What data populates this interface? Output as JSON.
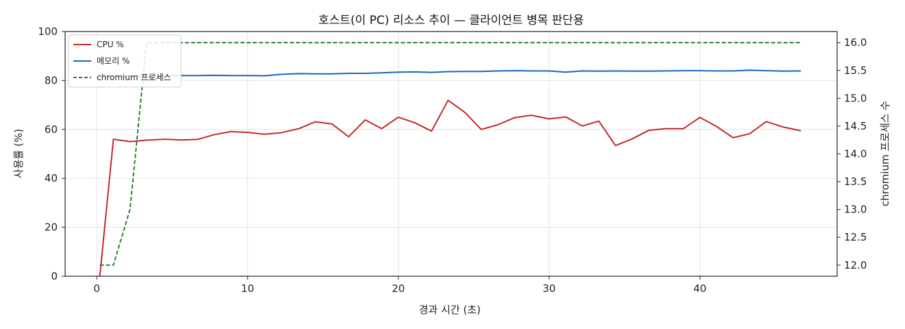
{
  "chart_data": {
    "type": "line",
    "title": "호스트(이 PC) 리소스 추이 — 클라이언트 병목 판단용",
    "xlabel": "경과 시간 (초)",
    "ylabel": "사용률 (%)",
    "y2label": "chromium 프로세스 수",
    "xlim": [
      -2.1,
      49.1
    ],
    "ylim": [
      0,
      100
    ],
    "y2lim": [
      11.8,
      16.2
    ],
    "x_ticks": [
      "0",
      "10",
      "20",
      "30",
      "40"
    ],
    "x_tick_values": [
      0,
      10,
      20,
      30,
      40
    ],
    "y_ticks": [
      "0",
      "20",
      "40",
      "60",
      "80",
      "100"
    ],
    "y_tick_values": [
      0,
      20,
      40,
      60,
      80,
      100
    ],
    "y2_ticks": [
      "12.0",
      "12.5",
      "13.0",
      "13.5",
      "14.0",
      "14.5",
      "15.0",
      "15.5",
      "16.0"
    ],
    "y2_tick_values": [
      12.0,
      12.5,
      13.0,
      13.5,
      14.0,
      14.5,
      15.0,
      15.5,
      16.0
    ],
    "grid": true,
    "legend_position": "top-left",
    "series": [
      {
        "name": "CPU %",
        "axis": "left",
        "color": "#c62828",
        "style": "solid",
        "x": [
          0.2,
          1.1,
          2.2,
          3.3,
          4.5,
          5.6,
          6.7,
          7.8,
          8.9,
          10.0,
          11.1,
          12.2,
          13.4,
          14.5,
          15.6,
          16.7,
          17.8,
          18.9,
          20.0,
          21.1,
          22.2,
          23.3,
          24.4,
          25.5,
          26.6,
          27.7,
          28.8,
          30.0,
          31.1,
          32.2,
          33.3,
          34.4,
          35.5,
          36.6,
          37.7,
          38.9,
          40.0,
          41.1,
          42.2,
          43.3,
          44.4,
          45.5,
          46.7
        ],
        "values": [
          0,
          56,
          55,
          55.6,
          56,
          55.7,
          55.9,
          57.9,
          59.1,
          58.8,
          58,
          58.6,
          60.3,
          63.1,
          62.2,
          57,
          63.9,
          60.3,
          65,
          62.7,
          59.3,
          71.9,
          67,
          60,
          61.9,
          64.8,
          65.8,
          64.3,
          65.1,
          61.4,
          63.4,
          53.4,
          56.1,
          59.6,
          60.3,
          60.3,
          64.9,
          61.2,
          56.6,
          58.2,
          63.2,
          61,
          59.4
        ]
      },
      {
        "name": "메모리 %",
        "axis": "left",
        "color": "#1565c0",
        "style": "solid",
        "x": [
          0.2,
          1.1,
          2.2,
          3.3,
          4.5,
          5.6,
          6.7,
          7.8,
          8.9,
          10.0,
          11.1,
          12.2,
          13.4,
          14.5,
          15.6,
          16.7,
          17.8,
          18.9,
          20.0,
          21.1,
          22.2,
          23.3,
          24.4,
          25.5,
          26.6,
          27.7,
          28.8,
          30.0,
          31.1,
          32.2,
          33.3,
          34.4,
          35.5,
          36.6,
          37.7,
          38.9,
          40.0,
          41.1,
          42.2,
          43.3,
          44.4,
          45.5,
          46.7
        ],
        "values": [
          81.5,
          81.6,
          81.7,
          81.8,
          82,
          82,
          82,
          82.1,
          82,
          82,
          81.9,
          82.5,
          82.8,
          82.7,
          82.7,
          82.9,
          82.9,
          83.1,
          83.4,
          83.5,
          83.3,
          83.6,
          83.7,
          83.7,
          83.9,
          84,
          83.9,
          83.9,
          83.4,
          83.9,
          83.8,
          83.9,
          83.8,
          83.8,
          83.9,
          84,
          84,
          83.9,
          83.9,
          84.2,
          84,
          83.8,
          83.9
        ]
      },
      {
        "name": "chromium 프로세스",
        "axis": "right",
        "color": "#2e7d32",
        "style": "dashed",
        "x": [
          0.2,
          1.1,
          2.2,
          3.3,
          4.5,
          5.6,
          6.7,
          7.8,
          8.9,
          10.0,
          11.1,
          12.2,
          13.4,
          14.5,
          15.6,
          16.7,
          17.8,
          18.9,
          20.0,
          21.1,
          22.2,
          23.3,
          24.4,
          25.5,
          26.6,
          27.7,
          28.8,
          30.0,
          31.1,
          32.2,
          33.3,
          34.4,
          35.5,
          36.6,
          37.7,
          38.9,
          40.0,
          41.1,
          42.2,
          43.3,
          44.4,
          45.5,
          46.7
        ],
        "values": [
          12,
          12,
          13,
          16,
          16,
          16,
          16,
          16,
          16,
          16,
          16,
          16,
          16,
          16,
          16,
          16,
          16,
          16,
          16,
          16,
          16,
          16,
          16,
          16,
          16,
          16,
          16,
          16,
          16,
          16,
          16,
          16,
          16,
          16,
          16,
          16,
          16,
          16,
          16,
          16,
          16,
          16,
          16
        ]
      }
    ]
  }
}
